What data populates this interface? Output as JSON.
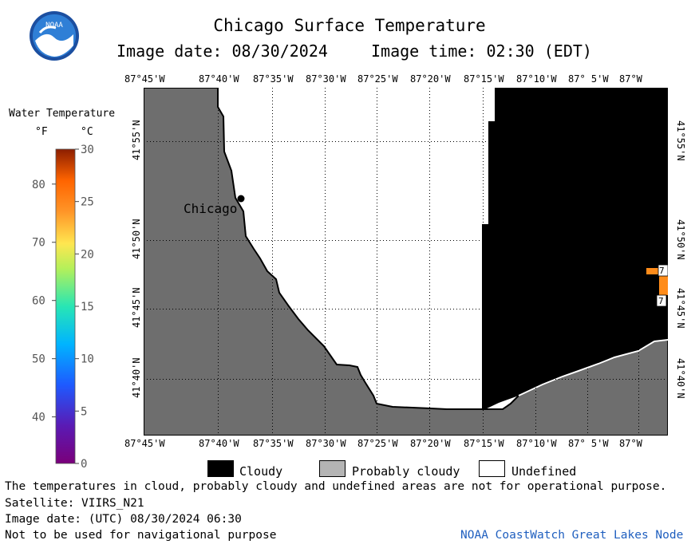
{
  "header": {
    "title": "Chicago Surface Temperature",
    "date_label": "Image date: 08/30/2024",
    "time_label": "Image time: 02:30 (EDT)"
  },
  "logo": {
    "text": "NOAA"
  },
  "legend": {
    "title": "Water Temperature",
    "unit_f": "°F",
    "unit_c": "°C",
    "f_ticks": [
      "80",
      "70",
      "60",
      "50",
      "40"
    ],
    "c_ticks": [
      "30",
      "25",
      "20",
      "15",
      "10",
      "5",
      "0"
    ]
  },
  "map": {
    "lon_labels": [
      "87°45'W",
      "87°40'W",
      "87°35'W",
      "87°30'W",
      "87°25'W",
      "87°20'W",
      "87°15'W",
      "87°10'W",
      "87° 5'W",
      "87°W"
    ],
    "lat_labels": [
      "41°55'N",
      "41°50'N",
      "41°45'N",
      "41°40'N"
    ],
    "city_label": "Chicago",
    "buoy_labels": [
      "7",
      "7"
    ]
  },
  "key": {
    "cloudy": "Cloudy",
    "probably_cloudy": "Probably cloudy",
    "undefined": "Undefined"
  },
  "footer": {
    "line1": "The temperatures in cloud, probably cloudy and undefined areas are not for operational purpose.",
    "line2": "Satellite: VIIRS_N21",
    "line3": "Image date: (UTC) 08/30/2024  06:30",
    "line4": "Not to be used for navigational purpose",
    "credit": "NOAA CoastWatch Great Lakes Node"
  },
  "colors": {
    "land": "#6e6e6e",
    "cloud": "#000000",
    "probably_cloudy": "#b4b4b4",
    "undefined": "#ffffff",
    "buoy": "#ff8c1a",
    "credit": "#1f5fbf"
  }
}
